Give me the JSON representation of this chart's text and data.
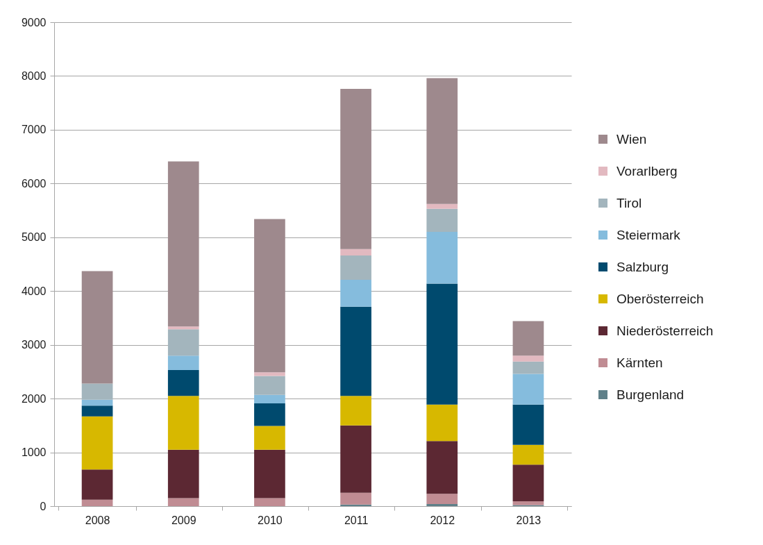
{
  "chart_data": {
    "type": "bar",
    "stacked": true,
    "categories": [
      "2008",
      "2009",
      "2010",
      "2011",
      "2012",
      "2013"
    ],
    "series": [
      {
        "name": "Burgenland",
        "color": "#5f8089",
        "values": [
          0,
          0,
          0,
          30,
          40,
          20
        ]
      },
      {
        "name": "Kärnten",
        "color": "#c08c93",
        "values": [
          120,
          150,
          150,
          220,
          190,
          70
        ]
      },
      {
        "name": "Niederösterreich",
        "color": "#5c2833",
        "values": [
          560,
          900,
          900,
          1250,
          980,
          680
        ]
      },
      {
        "name": "Oberösterreich",
        "color": "#d7b800",
        "values": [
          990,
          1000,
          440,
          550,
          680,
          370
        ]
      },
      {
        "name": "Salzburg",
        "color": "#004a6e",
        "values": [
          200,
          480,
          420,
          1660,
          2250,
          750
        ]
      },
      {
        "name": "Steiermark",
        "color": "#85bcdd",
        "values": [
          110,
          270,
          160,
          500,
          960,
          570
        ]
      },
      {
        "name": "Tirol",
        "color": "#a3b5bd",
        "values": [
          300,
          490,
          350,
          450,
          430,
          230
        ]
      },
      {
        "name": "Vorarlberg",
        "color": "#e2b9c0",
        "values": [
          0,
          50,
          70,
          120,
          90,
          110
        ]
      },
      {
        "name": "Wien",
        "color": "#9e898d",
        "values": [
          2090,
          3070,
          2850,
          2980,
          2340,
          640
        ]
      }
    ],
    "ylim": [
      0,
      9000
    ],
    "yticks": [
      0,
      1000,
      2000,
      3000,
      4000,
      5000,
      6000,
      7000,
      8000,
      9000
    ],
    "grid": "y",
    "legend": "right"
  }
}
